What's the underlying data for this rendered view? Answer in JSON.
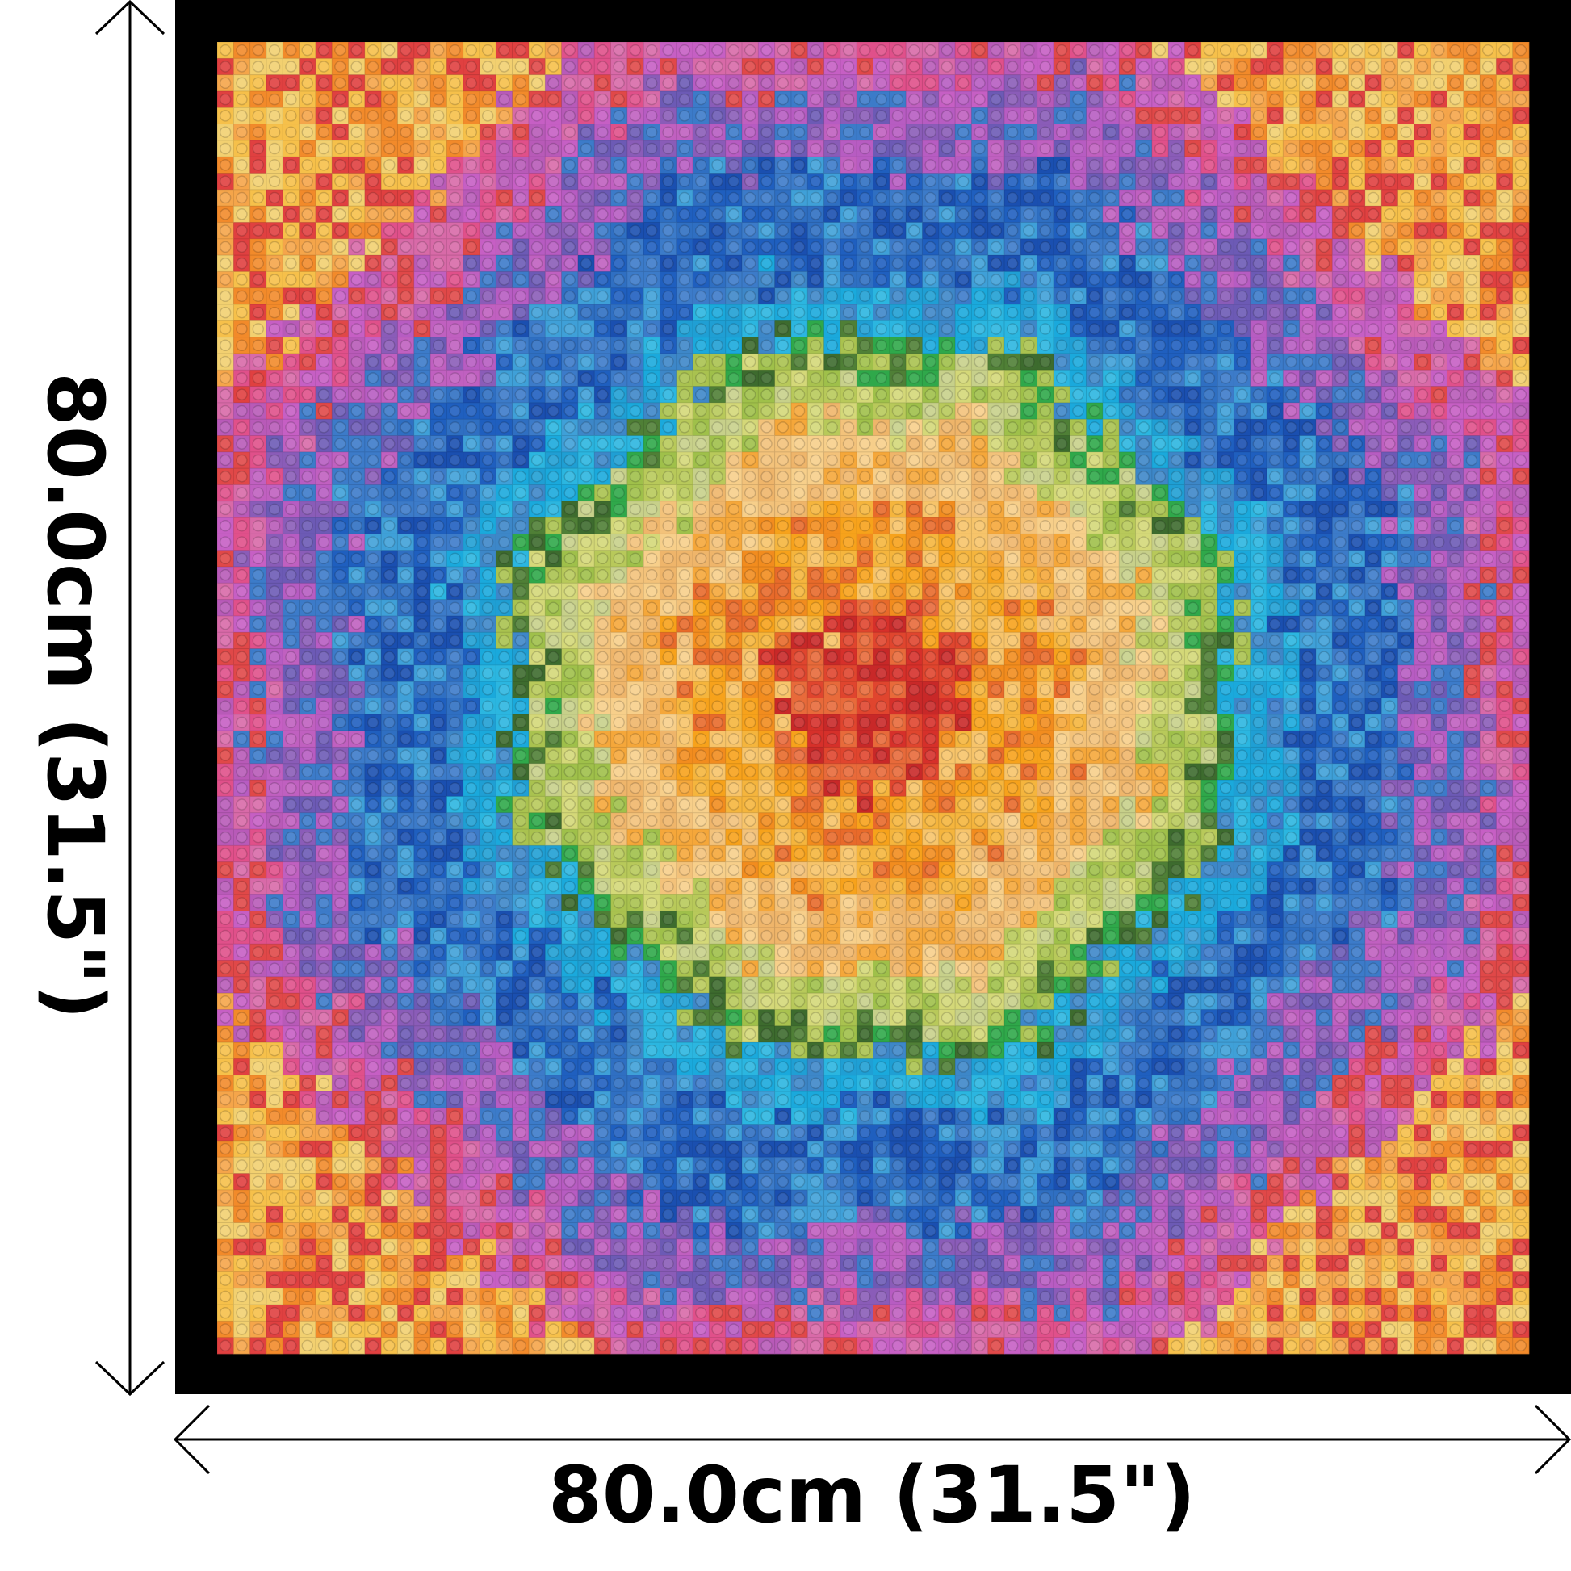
{
  "dimensions": {
    "width": "80.0cm (31.5\")",
    "height": "80.0cm (31.5\")"
  }
}
